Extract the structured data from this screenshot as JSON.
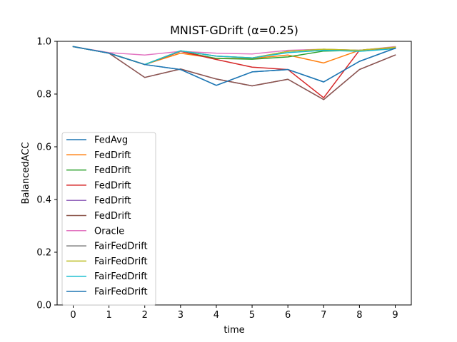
{
  "chart_data": {
    "type": "line",
    "title": "MNIST-GDrift (α=0.25)",
    "xlabel": "time",
    "ylabel": "BalancedACC",
    "xlim": [
      0,
      9
    ],
    "ylim": [
      0,
      1.0
    ],
    "x": [
      0,
      1,
      2,
      3,
      4,
      5,
      6,
      7,
      8,
      9
    ],
    "xticks": [
      "0",
      "1",
      "2",
      "3",
      "4",
      "5",
      "6",
      "7",
      "8",
      "9"
    ],
    "yticks": [
      "0.0",
      "0.2",
      "0.4",
      "0.6",
      "0.8",
      "1.0"
    ],
    "legend_position": "lower-left",
    "grid": false,
    "series": [
      {
        "name": "FedAvg",
        "color": "#1f77b4",
        "values": [
          0.98,
          0.955,
          0.912,
          0.893,
          0.833,
          0.884,
          0.893,
          0.846,
          0.924,
          0.974
        ]
      },
      {
        "name": "FedDrift",
        "color": "#ff7f0e",
        "values": [
          0.98,
          0.955,
          0.912,
          0.955,
          0.935,
          0.935,
          0.948,
          0.918,
          0.966,
          0.974
        ]
      },
      {
        "name": "FedDrift",
        "color": "#2ca02c",
        "values": [
          0.98,
          0.955,
          0.912,
          0.962,
          0.935,
          0.932,
          0.941,
          0.963,
          0.966,
          0.978
        ]
      },
      {
        "name": "FedDrift",
        "color": "#d62728",
        "values": [
          0.98,
          0.955,
          0.912,
          0.962,
          0.931,
          0.902,
          0.893,
          0.786,
          0.966,
          0.978
        ]
      },
      {
        "name": "FedDrift",
        "color": "#9467bd",
        "values": [
          0.98,
          0.955,
          0.863,
          0.895,
          0.857,
          0.831,
          0.856,
          0.779,
          0.893,
          0.948
        ]
      },
      {
        "name": "FedDrift",
        "color": "#8c564b",
        "values": [
          0.98,
          0.955,
          0.863,
          0.895,
          0.857,
          0.831,
          0.856,
          0.779,
          0.893,
          0.948
        ]
      },
      {
        "name": "Oracle",
        "color": "#e377c2",
        "values": [
          0.98,
          0.957,
          0.948,
          0.962,
          0.955,
          0.952,
          0.966,
          0.97,
          0.966,
          0.98
        ]
      },
      {
        "name": "FairFedDrift",
        "color": "#7f7f7f",
        "values": [
          0.98,
          0.955,
          0.912,
          0.964,
          0.944,
          0.937,
          0.962,
          0.97,
          0.966,
          0.978
        ]
      },
      {
        "name": "FairFedDrift",
        "color": "#bcbd22",
        "values": [
          0.98,
          0.955,
          0.912,
          0.964,
          0.944,
          0.937,
          0.962,
          0.97,
          0.966,
          0.978
        ]
      },
      {
        "name": "FairFedDrift",
        "color": "#17becf",
        "values": [
          0.98,
          0.955,
          0.912,
          0.964,
          0.944,
          0.937,
          0.957,
          0.966,
          0.962,
          0.972
        ]
      },
      {
        "name": "FairFedDrift",
        "color": "#1f77b4",
        "values": [
          0.98,
          0.955,
          0.912,
          0.893,
          0.833,
          0.884,
          0.893,
          0.846,
          0.924,
          0.974
        ]
      }
    ]
  }
}
